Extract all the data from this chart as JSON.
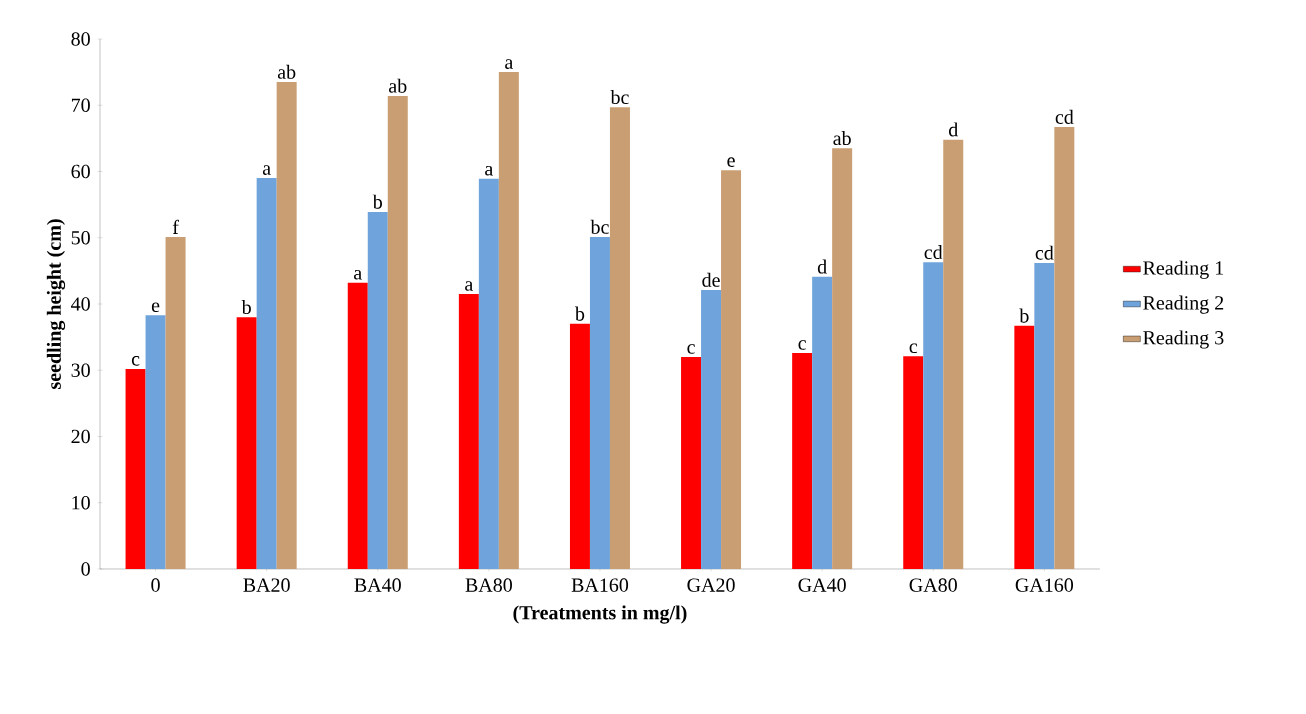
{
  "chart_data": {
    "type": "bar",
    "xlabel": "(Treatments  in mg/l)",
    "ylabel": "seedling height (cm)",
    "categories": [
      "0",
      "BA20",
      "BA40",
      "BA80",
      "BA160",
      "GA20",
      "GA40",
      "GA80",
      "GA160"
    ],
    "series": [
      {
        "name": "Reading 1",
        "color": "#ff0000",
        "values": [
          30.2,
          38,
          43.2,
          41.5,
          37,
          32,
          32.6,
          32.1,
          36.7
        ],
        "value_labels": [
          "c",
          "b",
          "a",
          "a",
          "b",
          "c",
          "c",
          "c",
          "b"
        ]
      },
      {
        "name": "Reading 2",
        "color": "#6fa3dc",
        "values": [
          38.3,
          59,
          53.9,
          58.9,
          50.1,
          42.1,
          44.1,
          46.3,
          46.2
        ],
        "value_labels": [
          "e",
          "a",
          "b",
          "a",
          "bc",
          "de",
          "d",
          "cd",
          "cd"
        ]
      },
      {
        "name": "Reading 3",
        "color": "#c99e72",
        "values": [
          50.1,
          73.5,
          71.4,
          75,
          69.7,
          60.2,
          63.5,
          64.8,
          66.7
        ],
        "value_labels": [
          "f",
          "ab",
          "ab",
          "a",
          "bc",
          "e",
          "ab",
          "d",
          "cd"
        ]
      }
    ],
    "ylim": [
      0,
      80
    ],
    "yticks": [
      0,
      10,
      20,
      30,
      40,
      50,
      60,
      70,
      80
    ],
    "legend": "right",
    "grid": false
  }
}
